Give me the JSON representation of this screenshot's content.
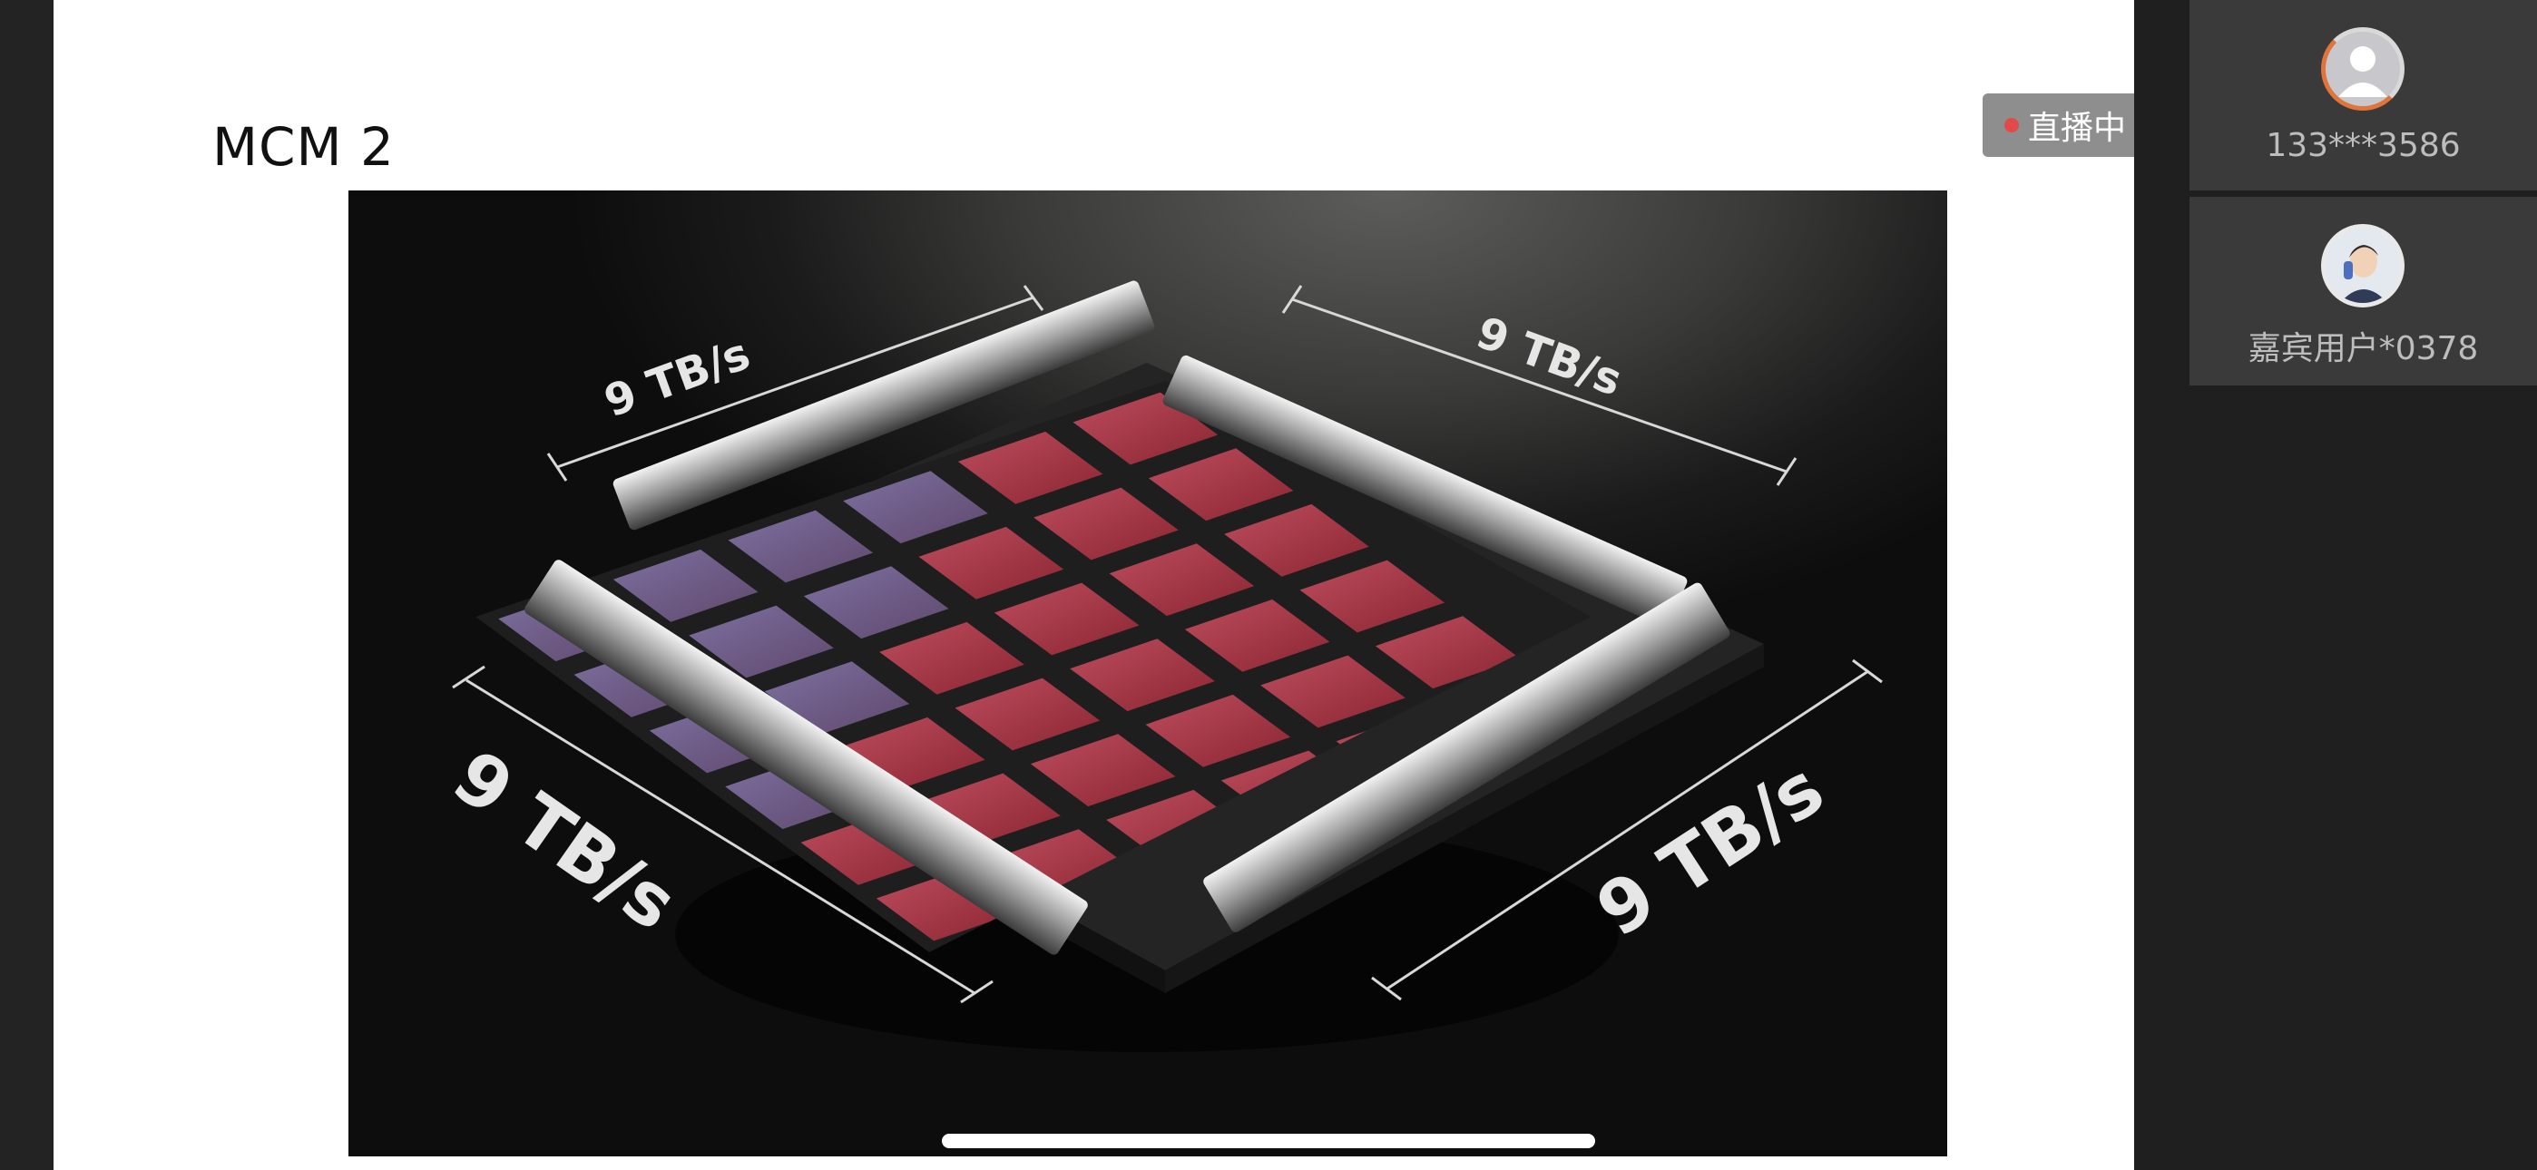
{
  "slide": {
    "title": "MCM 2",
    "image": {
      "labels": [
        "9 TB/s",
        "9 TB/s",
        "9 TB/s",
        "9 TB/s"
      ]
    }
  },
  "live_badge": {
    "label": "直播中",
    "dot_color": "#e04a4a"
  },
  "participants": [
    {
      "name": "133***3586",
      "avatar": "default-user-avatar"
    },
    {
      "name": "嘉宾用户*0378",
      "avatar": "guest-photo-avatar"
    }
  ],
  "colors": {
    "accent_ring": "#e0743a",
    "sidebar_bg": "#1f1f1f",
    "panel_bg": "#3a3a3a"
  }
}
